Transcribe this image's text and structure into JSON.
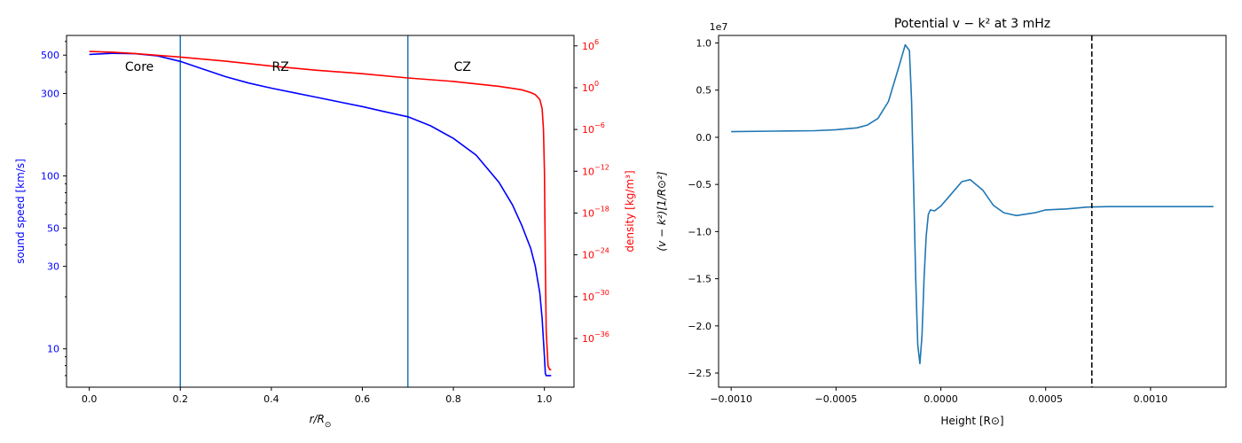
{
  "chart_data": [
    {
      "type": "line",
      "title": "",
      "xlabel": "r/R",
      "xlabel_sub": "⊙",
      "xlim": [
        -0.05,
        1.065
      ],
      "x_ticks": [
        0.0,
        0.2,
        0.4,
        0.6,
        0.8,
        1.0
      ],
      "x_tick_labels": [
        "0.0",
        "0.2",
        "0.4",
        "0.6",
        "0.8",
        "1.0"
      ],
      "left_axis": {
        "label": "sound speed [km/s]",
        "scale": "log",
        "ylim": [
          6,
          650
        ],
        "ticks": [
          10,
          30,
          50,
          100,
          300,
          500
        ],
        "tick_labels": [
          "10",
          "30",
          "50",
          "100",
          "300",
          "500"
        ],
        "color": "#0000ff"
      },
      "right_axis": {
        "label": "density [kg/m³]",
        "scale": "log",
        "ylim_exp": [
          -43.0,
          7.5
        ],
        "tick_exps": [
          6,
          0,
          -6,
          -12,
          -18,
          -24,
          -30,
          -36
        ],
        "color": "#ff0000"
      },
      "series": [
        {
          "name": "sound speed",
          "axis": "left",
          "color": "#0000ff",
          "x": [
            0.0,
            0.05,
            0.1,
            0.15,
            0.2,
            0.25,
            0.3,
            0.35,
            0.4,
            0.45,
            0.5,
            0.55,
            0.6,
            0.65,
            0.7,
            0.75,
            0.8,
            0.85,
            0.9,
            0.93,
            0.95,
            0.97,
            0.98,
            0.99,
            0.995,
            1.0,
            1.002,
            1.004,
            1.006,
            1.01,
            1.015
          ],
          "y": [
            505,
            512,
            510,
            495,
            460,
            415,
            375,
            345,
            322,
            303,
            285,
            268,
            252,
            235,
            220,
            195,
            165,
            132,
            92,
            68,
            52,
            38,
            30,
            21,
            15,
            9,
            7.2,
            7.0,
            7.0,
            7.0,
            7.0
          ]
        },
        {
          "name": "density",
          "axis": "right",
          "color": "#ff0000",
          "x": [
            0.0,
            0.05,
            0.1,
            0.2,
            0.3,
            0.4,
            0.5,
            0.6,
            0.7,
            0.8,
            0.9,
            0.95,
            0.97,
            0.98,
            0.99,
            0.995,
            0.998,
            1.0,
            1.002,
            1.004,
            1.008,
            1.012,
            1.015
          ],
          "y_exp": [
            5.2,
            5.1,
            4.9,
            4.4,
            3.8,
            3.1,
            2.5,
            2.0,
            1.4,
            0.9,
            0.2,
            -0.3,
            -0.7,
            -1.0,
            -1.7,
            -3.0,
            -6.0,
            -12.0,
            -25.0,
            -35.0,
            -40.0,
            -40.5,
            -40.5
          ]
        }
      ],
      "vlines": [
        0.2,
        0.7
      ],
      "vline_color": "#1f77b4",
      "annotations": [
        {
          "text": "Core",
          "x": 0.11,
          "y": 430
        },
        {
          "text": "RZ",
          "x": 0.42,
          "y": 430
        },
        {
          "text": "CZ",
          "x": 0.82,
          "y": 430
        }
      ]
    },
    {
      "type": "line",
      "title": "Potential v − k² at 3 mHz",
      "xlabel": "Height [R⊙]",
      "ylabel": "(v − k²)[1/R⊙²]",
      "offset_label": "1e7",
      "xlim": [
        -0.00106,
        0.00136
      ],
      "ylim": [
        -2.65,
        1.08
      ],
      "x_ticks": [
        -0.001,
        -0.0005,
        0.0,
        0.0005,
        0.001
      ],
      "x_tick_labels": [
        "−0.0010",
        "−0.0005",
        "0.0000",
        "0.0005",
        "0.0010"
      ],
      "y_ticks": [
        1.0,
        0.5,
        0.0,
        -0.5,
        -1.0,
        -1.5,
        -2.0,
        -2.5
      ],
      "y_tick_labels": [
        "1.0",
        "0.5",
        "0.0",
        "−0.5",
        "−1.0",
        "−1.5",
        "−2.0",
        "−2.5"
      ],
      "series": [
        {
          "name": "potential",
          "color": "#1f77b4",
          "x": [
            -0.001,
            -0.0008,
            -0.0006,
            -0.0005,
            -0.0004,
            -0.00035,
            -0.0003,
            -0.00025,
            -0.0002,
            -0.00017,
            -0.00015,
            -0.00014,
            -0.00013,
            -0.00012,
            -0.00011,
            -0.0001,
            -9e-05,
            -8e-05,
            -7e-05,
            -6e-05,
            -5e-05,
            -3e-05,
            0.0,
            5e-05,
            0.0001,
            0.00014,
            0.0002,
            0.00025,
            0.0003,
            0.00036,
            0.00045,
            0.0005,
            0.0006,
            0.0007,
            0.0008,
            0.001,
            0.0013
          ],
          "y": [
            0.06,
            0.065,
            0.07,
            0.08,
            0.1,
            0.13,
            0.2,
            0.38,
            0.75,
            0.98,
            0.92,
            0.4,
            -0.5,
            -1.5,
            -2.2,
            -2.4,
            -2.1,
            -1.5,
            -1.05,
            -0.82,
            -0.77,
            -0.78,
            -0.73,
            -0.6,
            -0.47,
            -0.45,
            -0.56,
            -0.72,
            -0.8,
            -0.83,
            -0.8,
            -0.77,
            -0.76,
            -0.74,
            -0.735,
            -0.735,
            -0.735
          ]
        }
      ],
      "vline": 0.00072,
      "vline_style": "dashed",
      "vline_color": "#000000"
    }
  ]
}
